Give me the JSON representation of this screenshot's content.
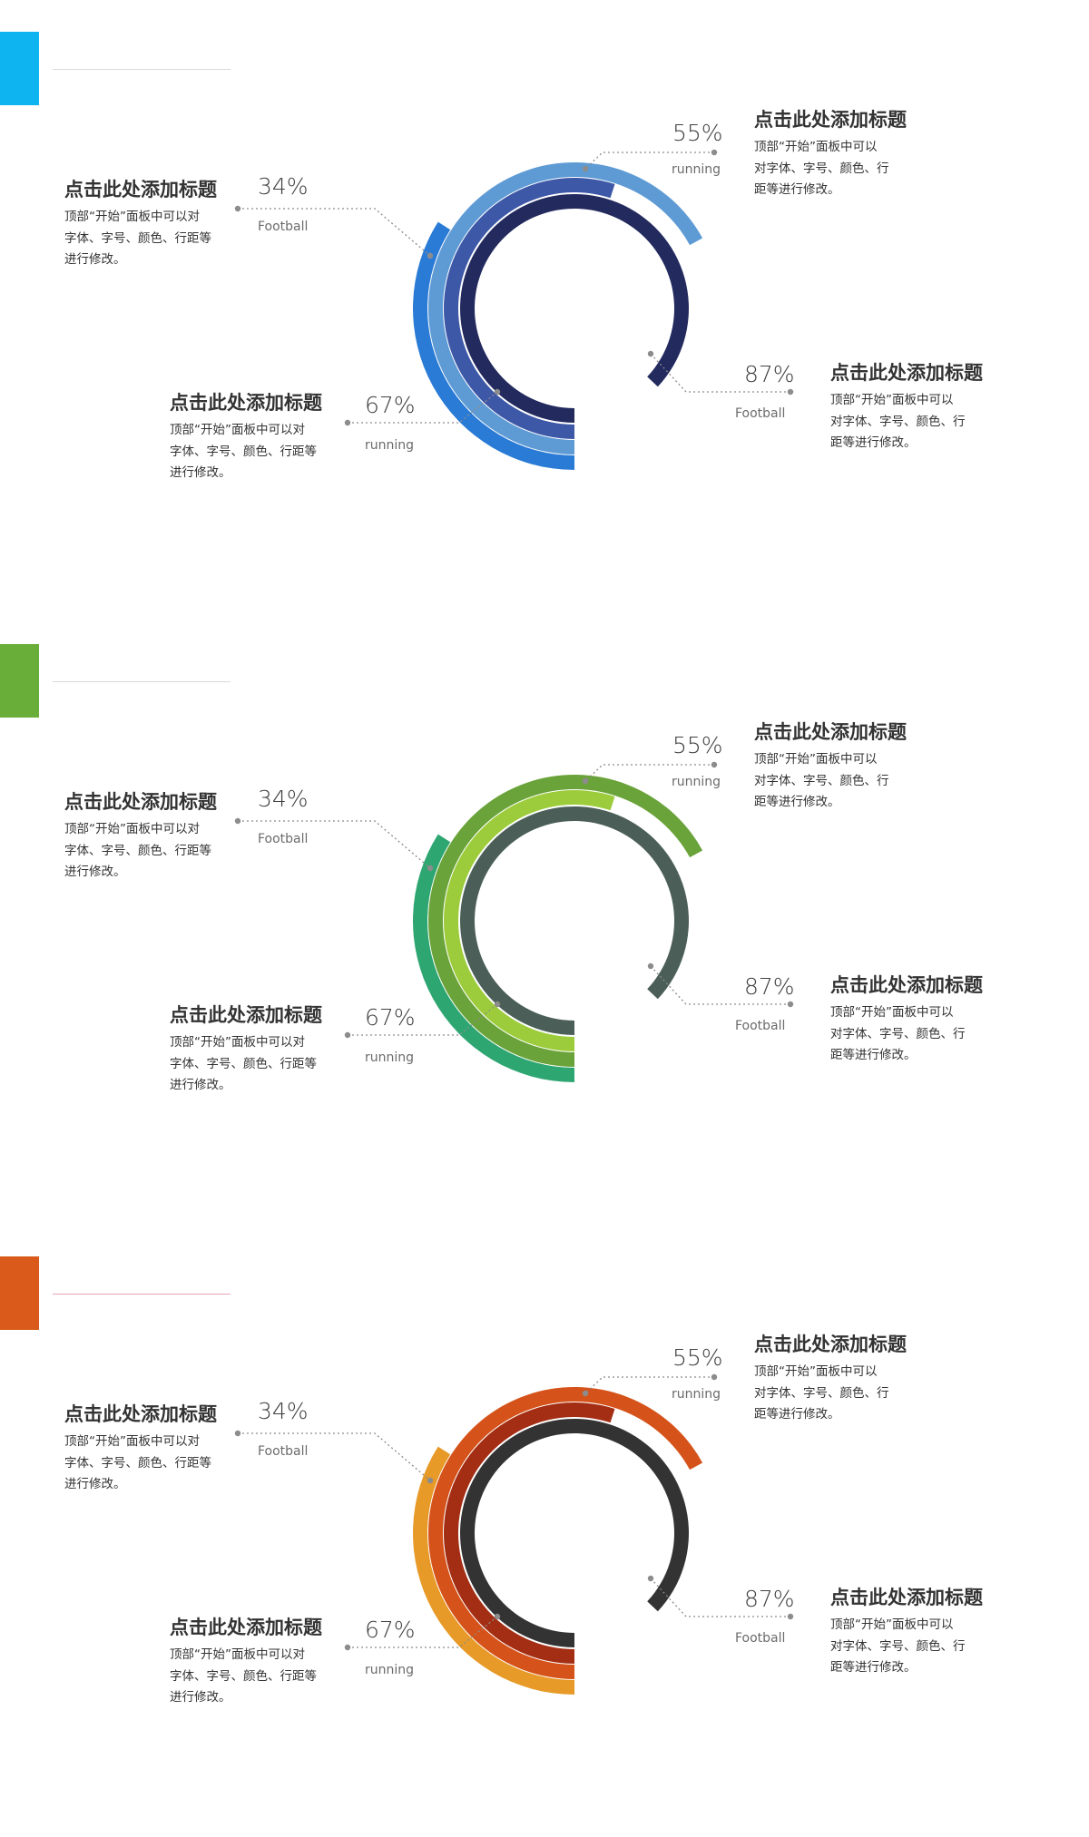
{
  "panels": [
    {
      "accent": "#0EB4F0",
      "divider": "#d9d9d9",
      "ring_colors": [
        "#2A7BD6",
        "#5E9BD5",
        "#3E58A8",
        "#222A5E"
      ],
      "labels": {
        "left_top": {
          "title": "点击此处添加标题",
          "desc": "顶部“开始”面板中可以对\n字体、字号、颜色、行距等\n进行修改。",
          "pct": "34%",
          "sub": "Football"
        },
        "left_bottom": {
          "title": "点击此处添加标题",
          "desc": "顶部“开始”面板中可以对\n字体、字号、颜色、行距等\n进行修改。",
          "pct": "67%",
          "sub": "running"
        },
        "right_top": {
          "title": "点击此处添加标题",
          "desc": "顶部“开始”面板中可以\n对字体、字号、颜色、行\n距等进行修改。",
          "pct": "55%",
          "sub": "running"
        },
        "right_bottom": {
          "title": "点击此处添加标题",
          "desc": "顶部“开始”面板中可以\n对字体、字号、颜色、行\n距等进行修改。",
          "pct": "87%",
          "sub": "Football"
        }
      }
    },
    {
      "accent": "#6AAE3A",
      "divider": "#d9d9d9",
      "ring_colors": [
        "#2EA672",
        "#6AA33A",
        "#9CCC3C",
        "#4B5F58"
      ],
      "labels": {
        "left_top": {
          "title": "点击此处添加标题",
          "desc": "顶部“开始”面板中可以对\n字体、字号、颜色、行距等\n进行修改。",
          "pct": "34%",
          "sub": "Football"
        },
        "left_bottom": {
          "title": "点击此处添加标题",
          "desc": "顶部“开始”面板中可以对\n字体、字号、颜色、行距等\n进行修改。",
          "pct": "67%",
          "sub": "running"
        },
        "right_top": {
          "title": "点击此处添加标题",
          "desc": "顶部“开始”面板中可以\n对字体、字号、颜色、行\n距等进行修改。",
          "pct": "55%",
          "sub": "running"
        },
        "right_bottom": {
          "title": "点击此处添加标题",
          "desc": "顶部“开始”面板中可以\n对字体、字号、颜色、行\n距等进行修改。",
          "pct": "87%",
          "sub": "Football"
        }
      }
    },
    {
      "accent": "#D95A1A",
      "divider": "#e7a4b4",
      "ring_colors": [
        "#E79A27",
        "#D5531A",
        "#A42E14",
        "#333333"
      ],
      "labels": {
        "left_top": {
          "title": "点击此处添加标题",
          "desc": "顶部“开始”面板中可以对\n字体、字号、颜色、行距等\n进行修改。",
          "pct": "34%",
          "sub": "Football"
        },
        "left_bottom": {
          "title": "点击此处添加标题",
          "desc": "顶部“开始”面板中可以对\n字体、字号、颜色、行距等\n进行修改。",
          "pct": "67%",
          "sub": "running"
        },
        "right_top": {
          "title": "点击此处添加标题",
          "desc": "顶部“开始”面板中可以\n对字体、字号、颜色、行\n距等进行修改。",
          "pct": "55%",
          "sub": "running"
        },
        "right_bottom": {
          "title": "点击此处添加标题",
          "desc": "顶部“开始”面板中可以\n对字体、字号、颜色、行\n距等进行修改。",
          "pct": "87%",
          "sub": "Football"
        }
      }
    }
  ],
  "chart_data": [
    {
      "type": "radial-bar",
      "categories": [
        "Football",
        "running",
        "running",
        "Football"
      ],
      "values": [
        34,
        67,
        55,
        87
      ]
    },
    {
      "type": "radial-bar",
      "categories": [
        "Football",
        "running",
        "running",
        "Football"
      ],
      "values": [
        34,
        67,
        55,
        87
      ]
    },
    {
      "type": "radial-bar",
      "categories": [
        "Football",
        "running",
        "running",
        "Football"
      ],
      "values": [
        34,
        67,
        55,
        87
      ]
    }
  ]
}
